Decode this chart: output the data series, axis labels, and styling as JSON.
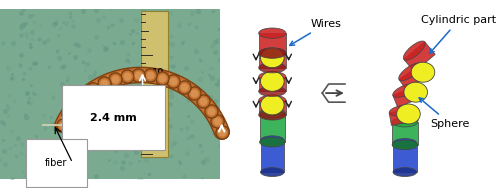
{
  "fig_width": 5.0,
  "fig_height": 1.88,
  "dpi": 100,
  "bg_color": "#ffffff",
  "annotation_2p4mm": "2.4 mm",
  "annotation_fiber": "fiber",
  "annotation_wires": "Wires",
  "annotation_cylindric": "Cylindric part",
  "annotation_sphere": "Sphere",
  "left_bg": "#7aaa90",
  "ruler_color": "#c8b860",
  "manipulator_color": "#c07830",
  "red_color": "#cc2222",
  "yellow_color": "#eeee22",
  "green_color": "#22aa44",
  "blue_color": "#2244cc",
  "wire_color": "#1a6acc",
  "arrow_color": "#222222"
}
